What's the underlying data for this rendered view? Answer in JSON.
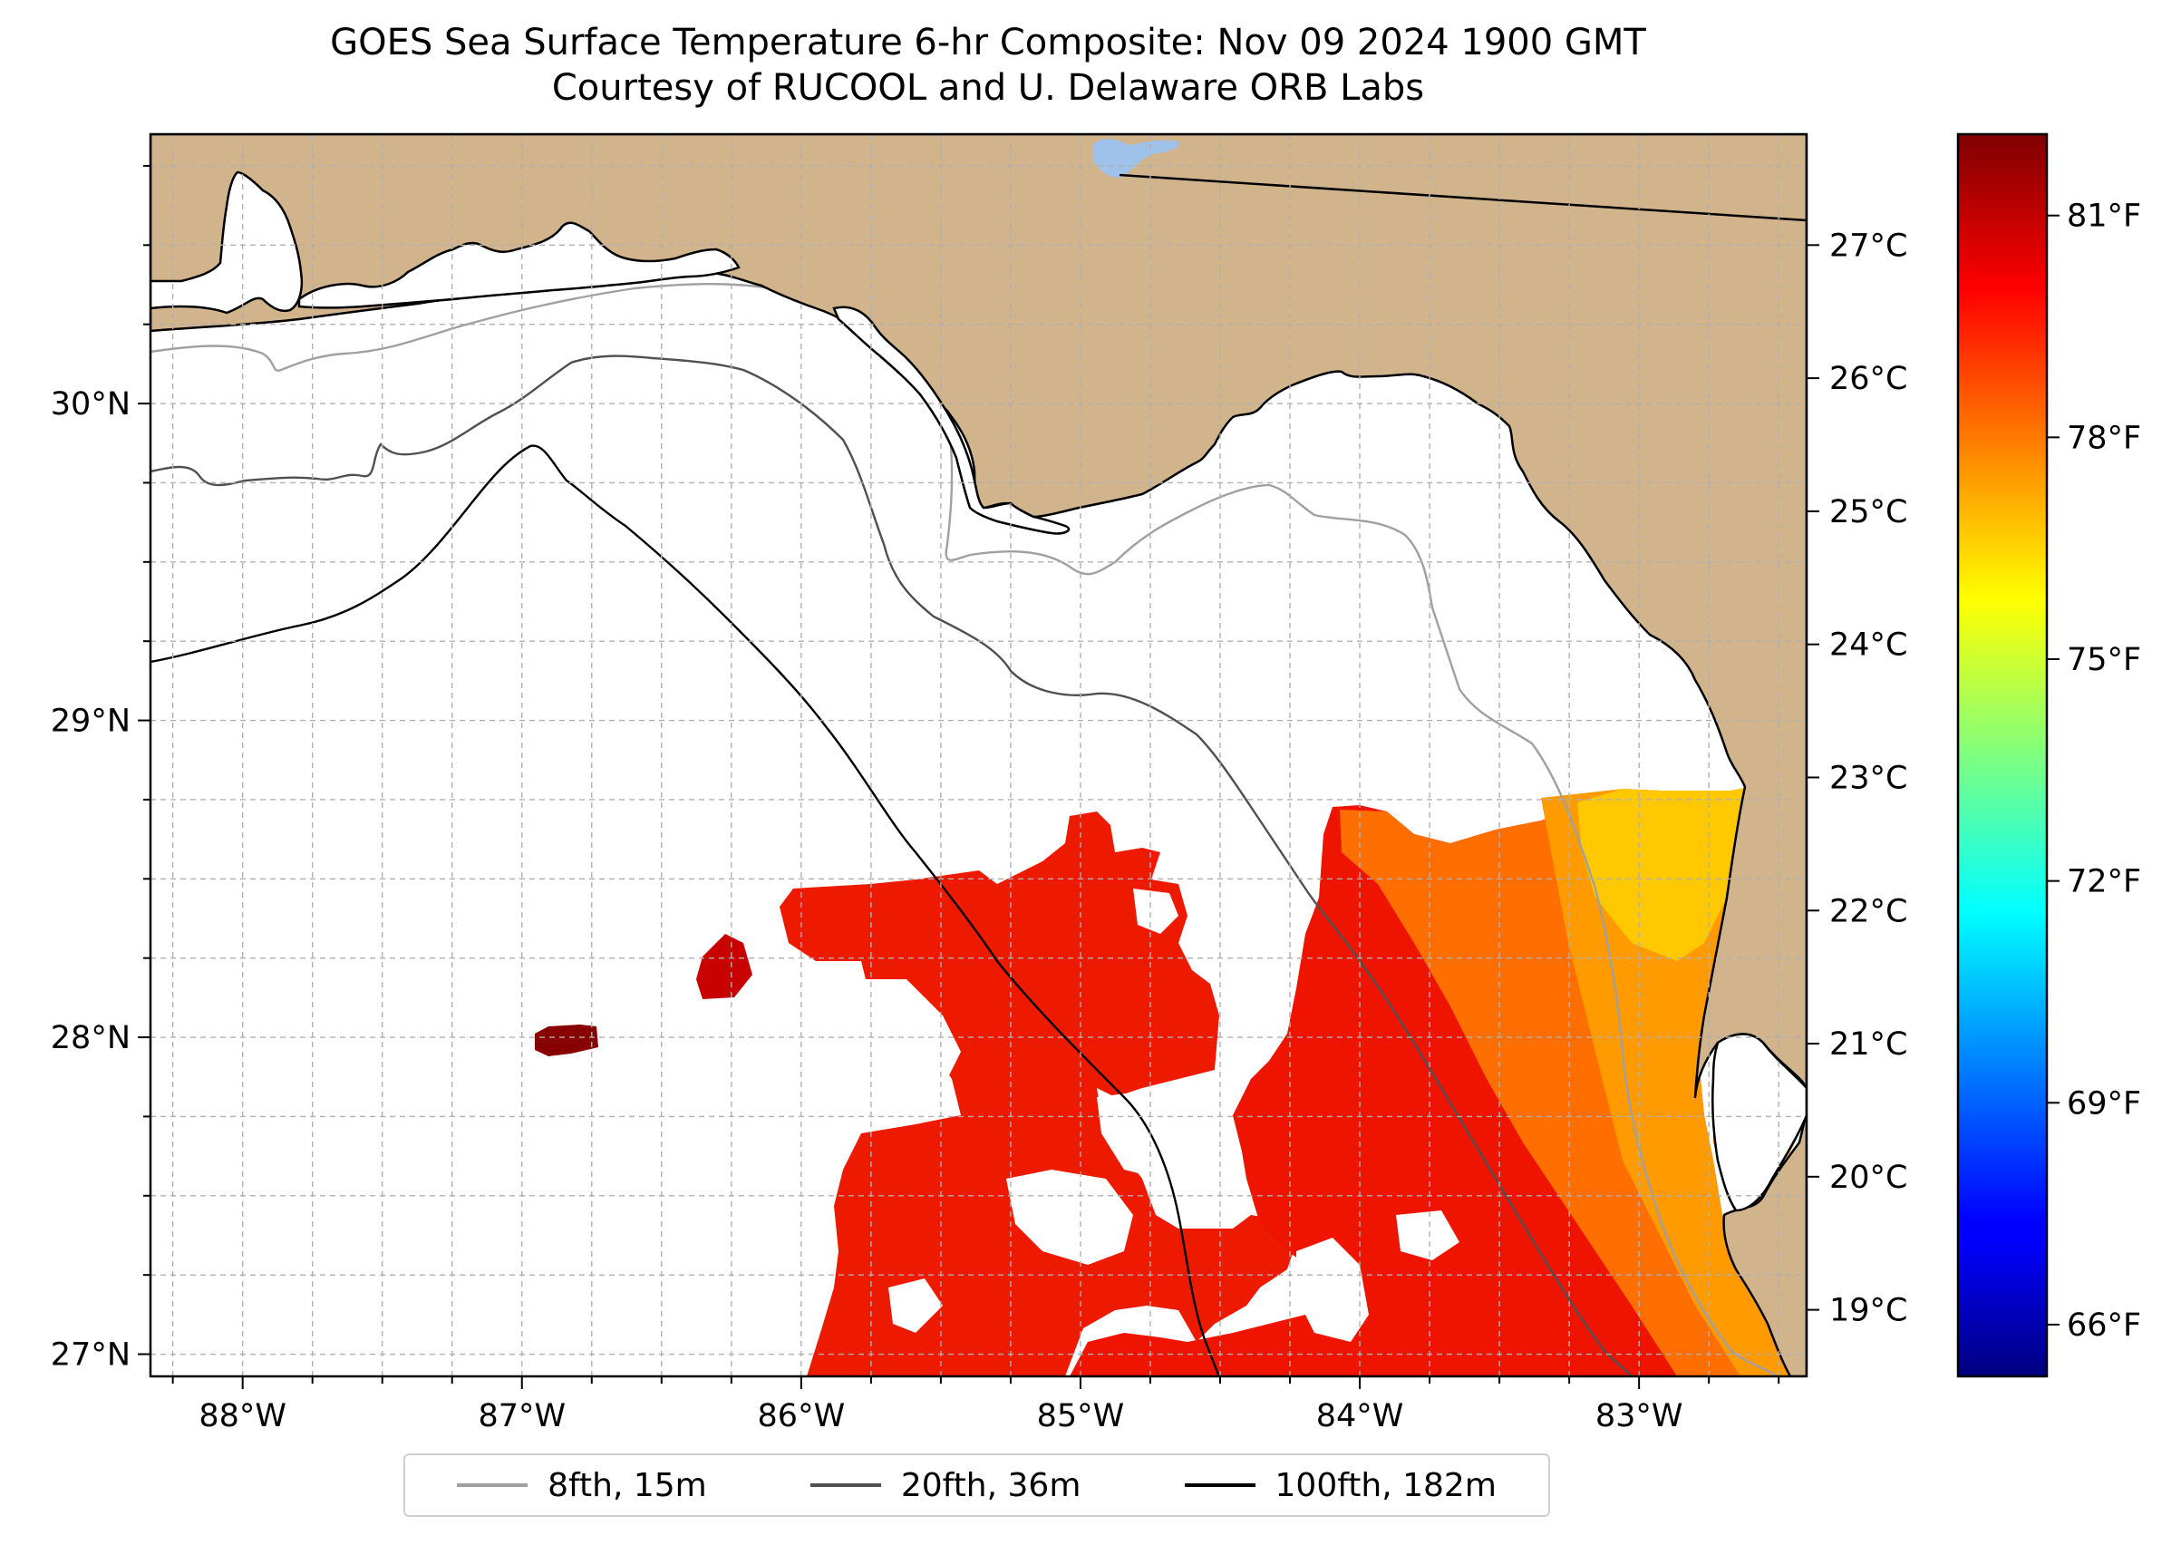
{
  "title": {
    "line1": "GOES Sea Surface Temperature 6-hr Composite: Nov 09 2024 1900 GMT",
    "line2": "Courtesy of RUCOOL and U. Delaware ORB Labs"
  },
  "map": {
    "lon_range": [
      -88.33,
      -82.4
    ],
    "lat_range": [
      26.93,
      30.85
    ],
    "lon_ticks": [
      {
        "value": -88,
        "label": "88°W"
      },
      {
        "value": -87,
        "label": "87°W"
      },
      {
        "value": -86,
        "label": "86°W"
      },
      {
        "value": -85,
        "label": "85°W"
      },
      {
        "value": -84,
        "label": "84°W"
      },
      {
        "value": -83,
        "label": "83°W"
      }
    ],
    "lat_ticks": [
      {
        "value": 27,
        "label": "27°N"
      },
      {
        "value": 28,
        "label": "28°N"
      },
      {
        "value": 29,
        "label": "29°N"
      },
      {
        "value": 30,
        "label": "30°N"
      }
    ],
    "grid": true,
    "colors": {
      "land": "#d2b48c",
      "coast": "#000000",
      "lake": "#9ec2ea",
      "grid": "#b0b0b0"
    }
  },
  "colorbar": {
    "colormap": "jet",
    "celsius_ticks": [
      {
        "value": 19,
        "label": "19°C"
      },
      {
        "value": 20,
        "label": "20°C"
      },
      {
        "value": 21,
        "label": "21°C"
      },
      {
        "value": 22,
        "label": "22°C"
      },
      {
        "value": 23,
        "label": "23°C"
      },
      {
        "value": 24,
        "label": "24°C"
      },
      {
        "value": 25,
        "label": "25°C"
      },
      {
        "value": 26,
        "label": "26°C"
      },
      {
        "value": 27,
        "label": "27°C"
      }
    ],
    "fahrenheit_ticks": [
      {
        "value": 66,
        "label": "66°F"
      },
      {
        "value": 69,
        "label": "69°F"
      },
      {
        "value": 72,
        "label": "72°F"
      },
      {
        "value": 75,
        "label": "75°F"
      },
      {
        "value": 78,
        "label": "78°F"
      },
      {
        "value": 81,
        "label": "81°F"
      }
    ],
    "range_f": [
      65.3,
      82.1
    ]
  },
  "legend": {
    "placement": "bottom-center",
    "items": [
      {
        "label": "8fth, 15m",
        "color": "#a0a0a0"
      },
      {
        "label": "20fth, 36m",
        "color": "#505050"
      },
      {
        "label": "100fth, 182m",
        "color": "#000000"
      }
    ]
  }
}
